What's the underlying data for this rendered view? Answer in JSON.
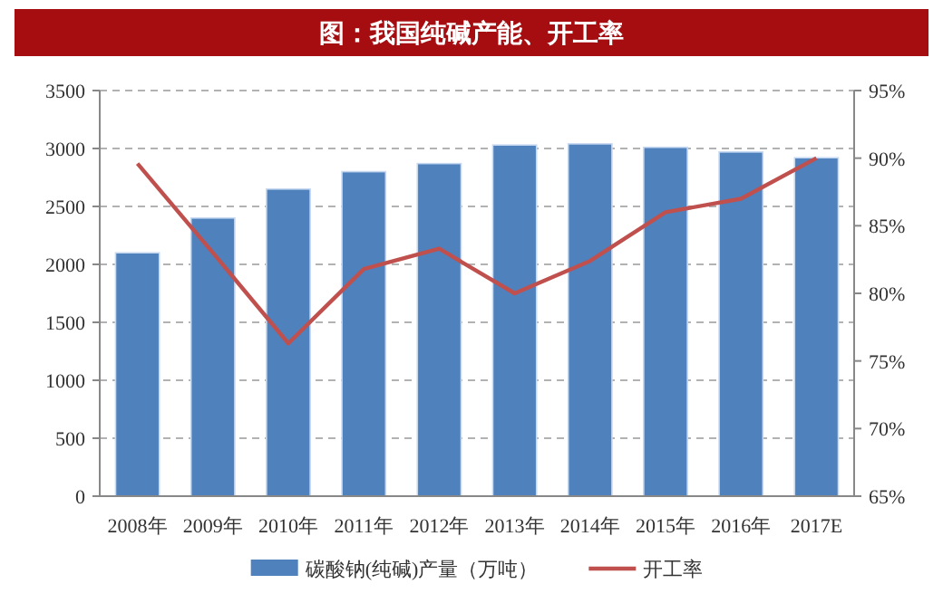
{
  "chart_data": {
    "type": "bar",
    "title": "图：我国纯碱产能、开工率",
    "categories": [
      "2008年",
      "2009年",
      "2010年",
      "2011年",
      "2012年",
      "2013年",
      "2014年",
      "2015年",
      "2016年",
      "2017E"
    ],
    "series": [
      {
        "name": "碳酸钠(纯碱)产量（万吨）",
        "color": "#4f81bd",
        "values": [
          2100,
          2400,
          2650,
          2800,
          2870,
          3030,
          3040,
          3010,
          2970,
          2920
        ]
      },
      {
        "name": "开工率",
        "type": "line",
        "axis": "y2",
        "color": "#c0504d",
        "values": [
          89.6,
          83,
          76.3,
          81.8,
          83.3,
          80.0,
          82.4,
          86.0,
          87.0,
          90.0
        ]
      }
    ],
    "ylim": [
      0,
      3500
    ],
    "yticks": [
      0,
      500,
      1000,
      1500,
      2000,
      2500,
      3000,
      3500
    ],
    "y2lim": [
      65,
      95
    ],
    "y2ticks": [
      {
        "value": 65,
        "label": "65%"
      },
      {
        "value": 70,
        "label": "70%"
      },
      {
        "value": 75,
        "label": "75%"
      },
      {
        "value": 80,
        "label": "80%"
      },
      {
        "value": 85,
        "label": "85%"
      },
      {
        "value": 90,
        "label": "90%"
      },
      {
        "value": 95,
        "label": "95%"
      }
    ],
    "grid": "y",
    "legend": "bottom"
  }
}
